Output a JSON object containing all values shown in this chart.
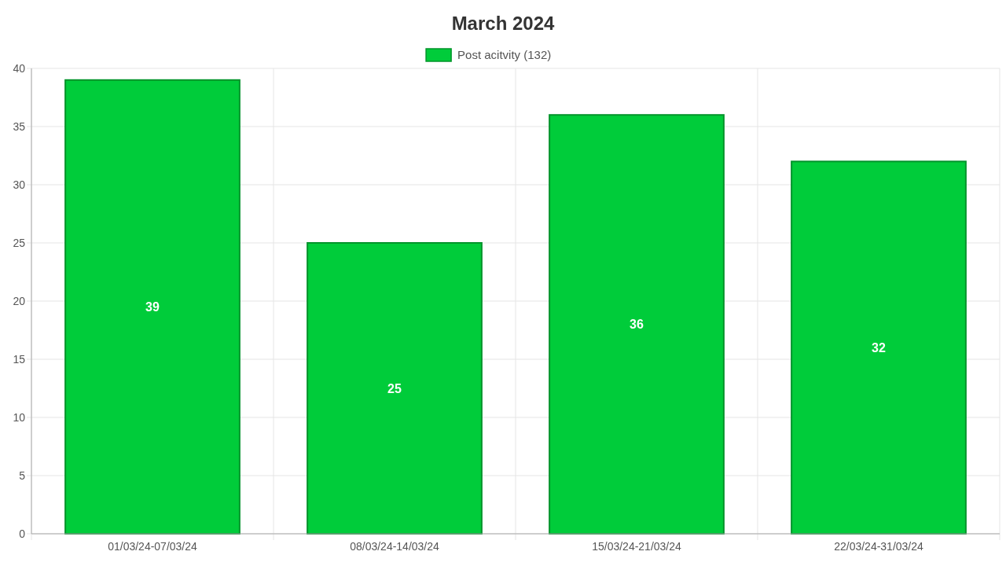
{
  "chart_data": {
    "type": "bar",
    "title": "March 2024",
    "categories": [
      "01/03/24-07/03/24",
      "08/03/24-14/03/24",
      "15/03/24-21/03/24",
      "22/03/24-31/03/24"
    ],
    "series": [
      {
        "name": "Post acitvity (132)",
        "color": "#00cc3a",
        "values": [
          39,
          25,
          36,
          32
        ]
      }
    ],
    "ylim": [
      0,
      40
    ],
    "yticks": [
      0,
      5,
      10,
      15,
      20,
      25,
      30,
      35,
      40
    ],
    "grid": true,
    "legend": "top",
    "data_labels": true
  }
}
